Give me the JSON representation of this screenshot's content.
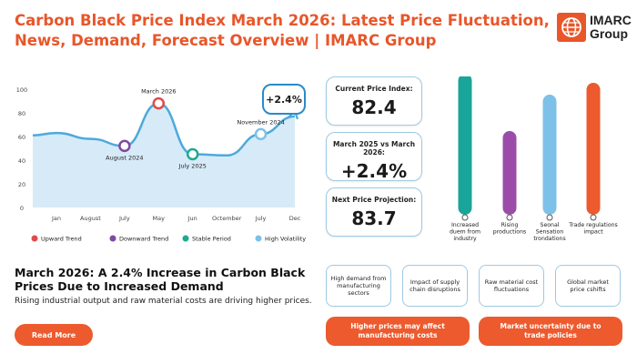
{
  "header": {
    "title": "Carbon Black Price Index March 2026: Latest Price Fluctuation, News, Demand, Forecast Overview | IMARC Group",
    "logo_text_line1": "IMARC",
    "logo_text_line2": "Group"
  },
  "colors": {
    "accent": "#e8562a",
    "curve_stroke": "#4da9dc",
    "curve_fill": "#cfe7f6",
    "upward": "#e24a4a",
    "downward": "#7d4aa0",
    "stable": "#1fa98f",
    "high_volatility": "#7ec1e8"
  },
  "chart_data": [
    {
      "type": "area",
      "y_ticks": [
        "100",
        "80",
        "60",
        "40",
        "20",
        "0"
      ],
      "ylim": [
        0,
        100
      ],
      "x": [
        "Jan",
        "August",
        "July",
        "May",
        "Jun",
        "Octember",
        "July",
        "Dec"
      ],
      "values": [
        63,
        58,
        52,
        88,
        45,
        44,
        62,
        77
      ],
      "annotations": [
        {
          "label": "August 2024",
          "kind": "downward"
        },
        {
          "label": "March 2026",
          "kind": "upward"
        },
        {
          "label": "July 2025",
          "kind": "stable"
        },
        {
          "label": "November 2024",
          "kind": "high_volatility"
        }
      ],
      "callout": "+2.4%",
      "legend": [
        {
          "label": "Upward Trend",
          "color": "#e24a4a"
        },
        {
          "label": "Downward Trend",
          "color": "#7d4aa0"
        },
        {
          "label": "Stable Period",
          "color": "#1fa98f"
        },
        {
          "label": "High Volatility",
          "color": "#7ec1e8"
        }
      ]
    },
    {
      "type": "bar",
      "categories": [
        [
          "Increased",
          "duem from",
          "industry"
        ],
        [
          "Rising",
          "productions"
        ],
        [
          "Seonal",
          "Sensation",
          "trondations"
        ],
        [
          "Trade regulations",
          "impact"
        ]
      ],
      "values": [
        155,
        92,
        132,
        145
      ],
      "colors": [
        "#1aa59a",
        "#9b4ca8",
        "#7ec1e8",
        "#ec5a2e"
      ]
    }
  ],
  "stats": [
    {
      "label": "Current Price Index:",
      "value": "82.4"
    },
    {
      "label": "March 2025 vs March 2026:",
      "value": "+2.4%"
    },
    {
      "label": "Next Price Projection:",
      "value": "83.7"
    }
  ],
  "main": {
    "heading": "March 2026: A 2.4% Increase in Carbon Black Prices Due to Increased Demand",
    "subtext": "Rising industrial output and raw material costs are driving higher prices.",
    "read_more": "Read More"
  },
  "factors": [
    "High demand from manufacturing sectors",
    "Impact of supply chain disruptions",
    "Raw material cost fluctuations",
    "Global market price cshifts"
  ],
  "impacts": [
    "Higher prices may affect manufacturing costs",
    "Market uncertainty due to trade policies"
  ]
}
